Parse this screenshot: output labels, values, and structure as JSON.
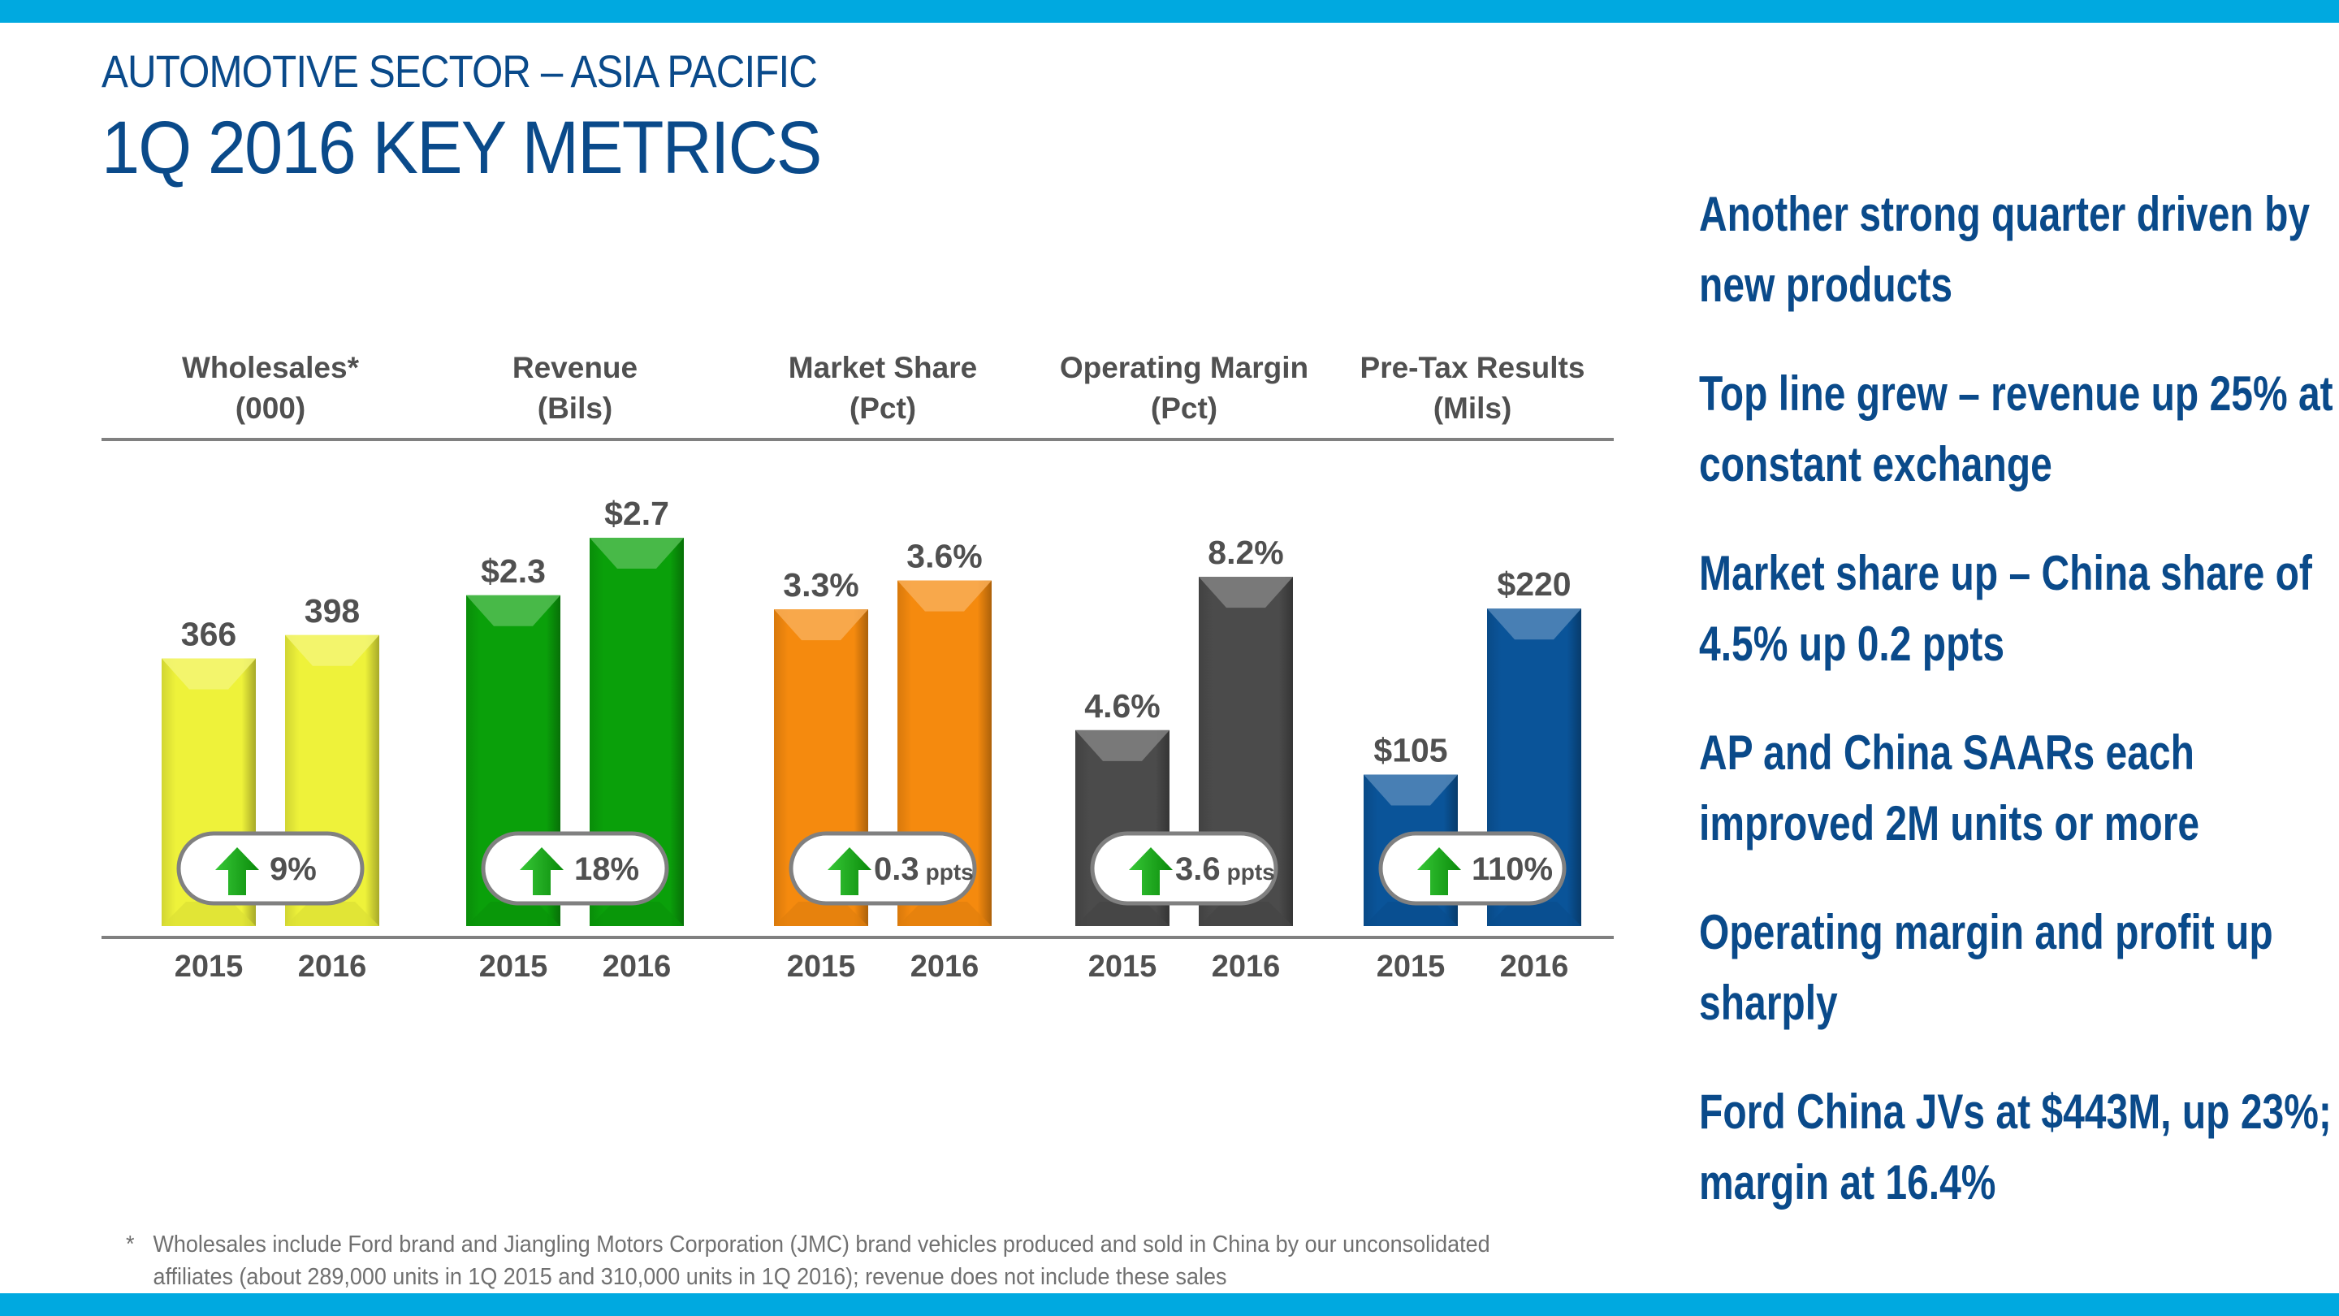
{
  "header": {
    "subtitle": "AUTOMOTIVE SECTOR – ASIA PACIFIC",
    "title": "1Q 2016 KEY METRICS"
  },
  "colors": {
    "band": "#00a9e0",
    "title": "#0a4a8a",
    "label_text": "#505050",
    "up_arrow": "#1aa51a"
  },
  "chart_data": {
    "type": "bar",
    "title": "1Q 2016 Key Metrics",
    "categories": [
      "2015",
      "2016"
    ],
    "grid": false,
    "legend": "none",
    "panels": [
      {
        "name": "Wholesales*",
        "unit": "(000)",
        "color": "#eef23a",
        "values": [
          366,
          398
        ],
        "labels": [
          "366",
          "398"
        ],
        "change": {
          "direction": "up",
          "value": "9%",
          "suffix": ""
        },
        "ylim": [
          0,
          600
        ]
      },
      {
        "name": "Revenue",
        "unit": "(Bils)",
        "color": "#0aa00a",
        "values": [
          2.3,
          2.7
        ],
        "labels": [
          "$2.3",
          "$2.7"
        ],
        "change": {
          "direction": "up",
          "value": "18%",
          "suffix": ""
        },
        "ylim": [
          0,
          3.05
        ]
      },
      {
        "name": "Market Share",
        "unit": "(Pct)",
        "color": "#f58a0e",
        "values": [
          3.3,
          3.6
        ],
        "labels": [
          "3.3%",
          "3.6%"
        ],
        "change": {
          "direction": "up",
          "value": "0.3",
          "suffix": "ppts"
        },
        "ylim": [
          0,
          4.57
        ]
      },
      {
        "name": "Operating Margin",
        "unit": "(Pct)",
        "color": "#4b4b4b",
        "values": [
          4.6,
          8.2
        ],
        "labels": [
          "4.6%",
          "8.2%"
        ],
        "change": {
          "direction": "up",
          "value": "3.6",
          "suffix": "ppts"
        },
        "ylim": [
          0,
          10.3
        ]
      },
      {
        "name": "Pre-Tax Results",
        "unit": "(Mils)",
        "color": "#0a5499",
        "values": [
          105,
          220
        ],
        "labels": [
          "$105",
          "$220"
        ],
        "change": {
          "direction": "up",
          "value": "110%",
          "suffix": ""
        },
        "ylim": [
          0,
          304
        ]
      }
    ]
  },
  "bullets": [
    "Another strong quarter driven by new products",
    "Top line grew – revenue up 25% at constant exchange",
    "Market share up – China share of 4.5% up 0.2 ppts",
    "AP and China SAARs each improved 2M units or more",
    "Operating margin and profit up sharply",
    "Ford China JVs at $443M, up 23%; margin at 16.4%"
  ],
  "footnote": {
    "marker": "*",
    "text": "Wholesales include Ford brand and Jiangling Motors Corporation (JMC) brand vehicles produced and sold in China by our unconsolidated affiliates (about 289,000 units in 1Q 2015 and 310,000 units in 1Q 2016); revenue does not include these sales"
  }
}
